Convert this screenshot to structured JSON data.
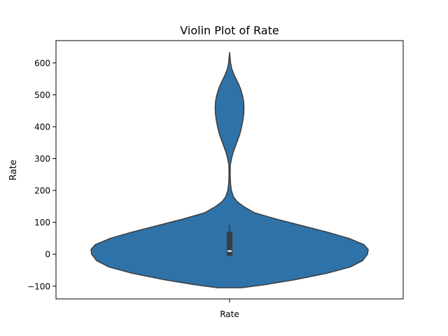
{
  "chart_data": {
    "type": "violin",
    "title": "Violin Plot of Rate",
    "xlabel": "",
    "ylabel": "Rate",
    "categories": [
      "Rate"
    ],
    "ylim": [
      -140,
      670
    ],
    "yticks": [
      -100,
      0,
      100,
      200,
      300,
      400,
      500,
      600
    ],
    "ytick_labels": [
      "−100",
      "0",
      "100",
      "200",
      "300",
      "400",
      "500",
      "600"
    ],
    "grid": false,
    "colors": {
      "violin_fill": "#2e72a8",
      "outline": "#3d3d3d",
      "box": "#3d3d3d",
      "median": "#ffffff"
    },
    "density_profile": [
      [
        -105,
        0.09
      ],
      [
        -95,
        0.26
      ],
      [
        -80,
        0.47
      ],
      [
        -60,
        0.7
      ],
      [
        -40,
        0.87
      ],
      [
        -20,
        0.96
      ],
      [
        0,
        0.995
      ],
      [
        15,
        1.0
      ],
      [
        30,
        0.97
      ],
      [
        50,
        0.86
      ],
      [
        70,
        0.7
      ],
      [
        90,
        0.52
      ],
      [
        110,
        0.34
      ],
      [
        130,
        0.18
      ],
      [
        150,
        0.1
      ],
      [
        165,
        0.055
      ],
      [
        180,
        0.028
      ],
      [
        200,
        0.013
      ],
      [
        220,
        0.007
      ],
      [
        250,
        0.004
      ],
      [
        280,
        0.005
      ],
      [
        300,
        0.014
      ],
      [
        320,
        0.026
      ],
      [
        340,
        0.043
      ],
      [
        360,
        0.06
      ],
      [
        380,
        0.076
      ],
      [
        400,
        0.087
      ],
      [
        420,
        0.096
      ],
      [
        440,
        0.102
      ],
      [
        460,
        0.104
      ],
      [
        480,
        0.101
      ],
      [
        500,
        0.092
      ],
      [
        520,
        0.078
      ],
      [
        540,
        0.058
      ],
      [
        560,
        0.035
      ],
      [
        580,
        0.017
      ],
      [
        600,
        0.007
      ],
      [
        620,
        0.003
      ],
      [
        633,
        0.0
      ]
    ],
    "box": {
      "q1": -5,
      "median": 10,
      "q3": 70,
      "whisker_low": -5,
      "whisker_high": 92
    }
  }
}
